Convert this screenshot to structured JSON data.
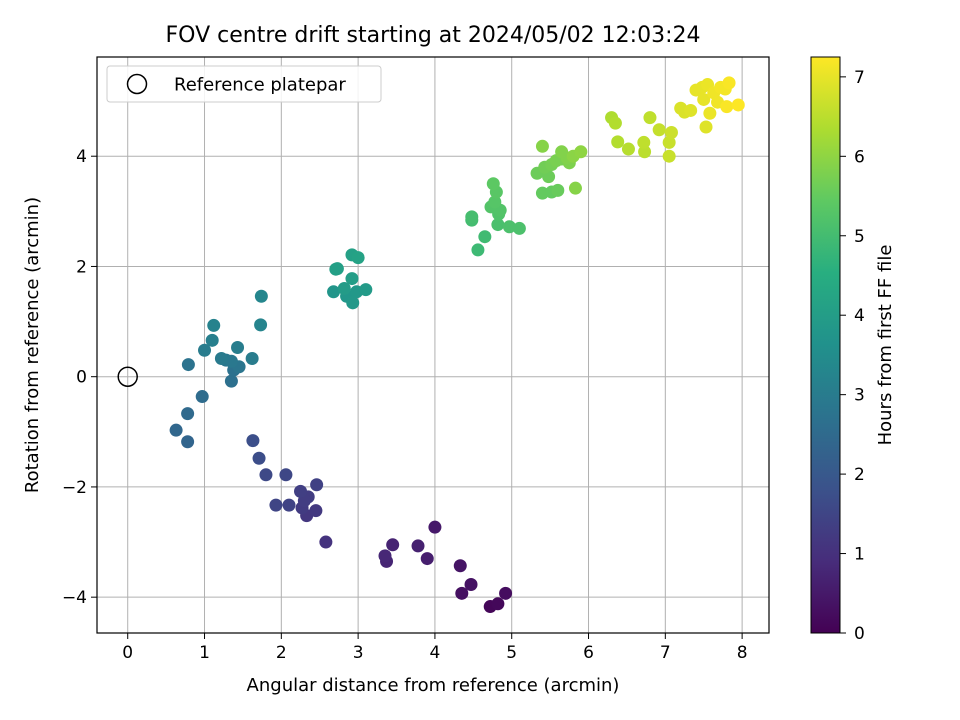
{
  "chart_data": {
    "type": "scatter",
    "title": "FOV centre drift starting at 2024/05/02 12:03:24",
    "xlabel": "Angular distance from reference (arcmin)",
    "ylabel": "Rotation from reference (arcmin)",
    "xlim": [
      -0.4,
      8.35
    ],
    "ylim": [
      -4.65,
      5.8
    ],
    "xticks": [
      0,
      1,
      2,
      3,
      4,
      5,
      6,
      7,
      8
    ],
    "yticks": [
      -4,
      -2,
      0,
      2,
      4
    ],
    "grid": true,
    "legend": {
      "placement": "top-left",
      "entries": [
        "Reference platepar"
      ]
    },
    "reference_point": {
      "name": "Reference platepar",
      "x": 0,
      "y": 0,
      "marker": "hollow-circle"
    },
    "colorbar": {
      "label": "Hours from first FF file",
      "colormap": "viridis",
      "range": [
        0,
        7.25
      ],
      "ticks": [
        0,
        1,
        2,
        3,
        4,
        5,
        6,
        7
      ]
    },
    "points": [
      {
        "x": 4.72,
        "y": -4.17,
        "c": 0.1
      },
      {
        "x": 4.82,
        "y": -4.12,
        "c": 0.15
      },
      {
        "x": 4.92,
        "y": -3.93,
        "c": 0.25
      },
      {
        "x": 4.35,
        "y": -3.93,
        "c": 0.3
      },
      {
        "x": 4.47,
        "y": -3.77,
        "c": 0.35
      },
      {
        "x": 4.33,
        "y": -3.43,
        "c": 0.4
      },
      {
        "x": 4.0,
        "y": -2.73,
        "c": 0.5
      },
      {
        "x": 3.9,
        "y": -3.3,
        "c": 0.6
      },
      {
        "x": 3.78,
        "y": -3.07,
        "c": 0.65
      },
      {
        "x": 3.45,
        "y": -3.05,
        "c": 0.7
      },
      {
        "x": 3.37,
        "y": -3.35,
        "c": 0.75
      },
      {
        "x": 3.35,
        "y": -3.25,
        "c": 0.8
      },
      {
        "x": 2.58,
        "y": -3.0,
        "c": 1.05
      },
      {
        "x": 2.33,
        "y": -2.52,
        "c": 1.15
      },
      {
        "x": 2.45,
        "y": -2.43,
        "c": 1.2
      },
      {
        "x": 2.27,
        "y": -2.38,
        "c": 1.25
      },
      {
        "x": 2.35,
        "y": -2.18,
        "c": 1.3
      },
      {
        "x": 2.3,
        "y": -2.25,
        "c": 1.3
      },
      {
        "x": 2.25,
        "y": -2.08,
        "c": 1.35
      },
      {
        "x": 2.46,
        "y": -1.96,
        "c": 1.4
      },
      {
        "x": 2.1,
        "y": -2.33,
        "c": 1.45
      },
      {
        "x": 1.93,
        "y": -2.33,
        "c": 1.5
      },
      {
        "x": 2.06,
        "y": -1.78,
        "c": 1.55
      },
      {
        "x": 1.8,
        "y": -1.78,
        "c": 1.6
      },
      {
        "x": 1.71,
        "y": -1.48,
        "c": 1.7
      },
      {
        "x": 1.63,
        "y": -1.16,
        "c": 1.75
      },
      {
        "x": 0.78,
        "y": -1.18,
        "c": 2.35
      },
      {
        "x": 0.63,
        "y": -0.97,
        "c": 2.4
      },
      {
        "x": 0.78,
        "y": -0.67,
        "c": 2.5
      },
      {
        "x": 0.97,
        "y": -0.36,
        "c": 2.55
      },
      {
        "x": 1.35,
        "y": -0.08,
        "c": 2.65
      },
      {
        "x": 1.38,
        "y": 0.12,
        "c": 2.7
      },
      {
        "x": 0.79,
        "y": 0.22,
        "c": 2.75
      },
      {
        "x": 1.45,
        "y": 0.18,
        "c": 2.8
      },
      {
        "x": 1.28,
        "y": 0.3,
        "c": 2.85
      },
      {
        "x": 1.35,
        "y": 0.28,
        "c": 2.9
      },
      {
        "x": 1.22,
        "y": 0.33,
        "c": 2.95
      },
      {
        "x": 1.62,
        "y": 0.33,
        "c": 3.0
      },
      {
        "x": 1.0,
        "y": 0.48,
        "c": 3.0
      },
      {
        "x": 1.43,
        "y": 0.53,
        "c": 3.05
      },
      {
        "x": 1.1,
        "y": 0.66,
        "c": 3.1
      },
      {
        "x": 1.12,
        "y": 0.93,
        "c": 3.2
      },
      {
        "x": 1.73,
        "y": 0.94,
        "c": 3.25
      },
      {
        "x": 1.74,
        "y": 1.46,
        "c": 3.3
      },
      {
        "x": 2.68,
        "y": 1.54,
        "c": 3.75
      },
      {
        "x": 2.85,
        "y": 1.46,
        "c": 3.8
      },
      {
        "x": 2.93,
        "y": 1.34,
        "c": 3.85
      },
      {
        "x": 2.98,
        "y": 1.54,
        "c": 3.85
      },
      {
        "x": 3.1,
        "y": 1.58,
        "c": 3.9
      },
      {
        "x": 2.82,
        "y": 1.6,
        "c": 3.95
      },
      {
        "x": 2.92,
        "y": 1.78,
        "c": 4.0
      },
      {
        "x": 2.73,
        "y": 1.96,
        "c": 4.05
      },
      {
        "x": 2.71,
        "y": 1.95,
        "c": 4.05
      },
      {
        "x": 2.92,
        "y": 2.21,
        "c": 4.1
      },
      {
        "x": 3.0,
        "y": 2.16,
        "c": 4.15
      },
      {
        "x": 4.56,
        "y": 2.3,
        "c": 4.9
      },
      {
        "x": 4.65,
        "y": 2.54,
        "c": 4.95
      },
      {
        "x": 4.48,
        "y": 2.84,
        "c": 5.0
      },
      {
        "x": 4.48,
        "y": 2.9,
        "c": 5.05
      },
      {
        "x": 4.82,
        "y": 2.76,
        "c": 5.1
      },
      {
        "x": 4.97,
        "y": 2.72,
        "c": 5.15
      },
      {
        "x": 5.1,
        "y": 2.69,
        "c": 5.15
      },
      {
        "x": 4.83,
        "y": 2.95,
        "c": 5.2
      },
      {
        "x": 4.73,
        "y": 3.08,
        "c": 5.25
      },
      {
        "x": 4.85,
        "y": 3.02,
        "c": 5.25
      },
      {
        "x": 4.78,
        "y": 3.17,
        "c": 5.3
      },
      {
        "x": 4.8,
        "y": 3.35,
        "c": 5.35
      },
      {
        "x": 4.76,
        "y": 3.5,
        "c": 5.4
      },
      {
        "x": 5.4,
        "y": 3.33,
        "c": 5.5
      },
      {
        "x": 5.52,
        "y": 3.35,
        "c": 5.5
      },
      {
        "x": 5.6,
        "y": 3.38,
        "c": 5.55
      },
      {
        "x": 5.33,
        "y": 3.69,
        "c": 5.6
      },
      {
        "x": 5.48,
        "y": 3.63,
        "c": 5.6
      },
      {
        "x": 5.43,
        "y": 3.8,
        "c": 5.65
      },
      {
        "x": 5.52,
        "y": 3.85,
        "c": 5.7
      },
      {
        "x": 5.58,
        "y": 3.92,
        "c": 5.75
      },
      {
        "x": 5.65,
        "y": 3.95,
        "c": 5.75
      },
      {
        "x": 5.75,
        "y": 3.88,
        "c": 5.8
      },
      {
        "x": 5.72,
        "y": 3.97,
        "c": 5.85
      },
      {
        "x": 5.65,
        "y": 4.08,
        "c": 5.85
      },
      {
        "x": 5.4,
        "y": 4.18,
        "c": 5.9
      },
      {
        "x": 5.83,
        "y": 3.42,
        "c": 5.9
      },
      {
        "x": 5.8,
        "y": 4.0,
        "c": 5.95
      },
      {
        "x": 5.9,
        "y": 4.08,
        "c": 6.0
      },
      {
        "x": 6.3,
        "y": 4.7,
        "c": 6.35
      },
      {
        "x": 6.35,
        "y": 4.6,
        "c": 6.4
      },
      {
        "x": 6.38,
        "y": 4.26,
        "c": 6.4
      },
      {
        "x": 6.52,
        "y": 4.13,
        "c": 6.45
      },
      {
        "x": 6.73,
        "y": 4.08,
        "c": 6.5
      },
      {
        "x": 6.72,
        "y": 4.25,
        "c": 6.55
      },
      {
        "x": 6.8,
        "y": 4.7,
        "c": 6.55
      },
      {
        "x": 6.92,
        "y": 4.48,
        "c": 6.6
      },
      {
        "x": 7.05,
        "y": 4.0,
        "c": 6.65
      },
      {
        "x": 7.05,
        "y": 4.25,
        "c": 6.65
      },
      {
        "x": 7.08,
        "y": 4.43,
        "c": 6.7
      },
      {
        "x": 7.2,
        "y": 4.87,
        "c": 6.85
      },
      {
        "x": 7.25,
        "y": 4.8,
        "c": 6.85
      },
      {
        "x": 7.33,
        "y": 4.83,
        "c": 6.9
      },
      {
        "x": 7.53,
        "y": 4.53,
        "c": 6.9
      },
      {
        "x": 7.4,
        "y": 5.2,
        "c": 7.0
      },
      {
        "x": 7.48,
        "y": 5.25,
        "c": 7.0
      },
      {
        "x": 7.5,
        "y": 5.03,
        "c": 7.0
      },
      {
        "x": 7.55,
        "y": 5.3,
        "c": 7.05
      },
      {
        "x": 7.58,
        "y": 4.78,
        "c": 7.05
      },
      {
        "x": 7.63,
        "y": 5.15,
        "c": 7.1
      },
      {
        "x": 7.68,
        "y": 4.98,
        "c": 7.1
      },
      {
        "x": 7.72,
        "y": 5.25,
        "c": 7.15
      },
      {
        "x": 7.78,
        "y": 5.22,
        "c": 7.15
      },
      {
        "x": 7.83,
        "y": 5.33,
        "c": 7.2
      },
      {
        "x": 7.8,
        "y": 4.9,
        "c": 7.2
      },
      {
        "x": 7.95,
        "y": 4.93,
        "c": 7.25
      }
    ]
  }
}
